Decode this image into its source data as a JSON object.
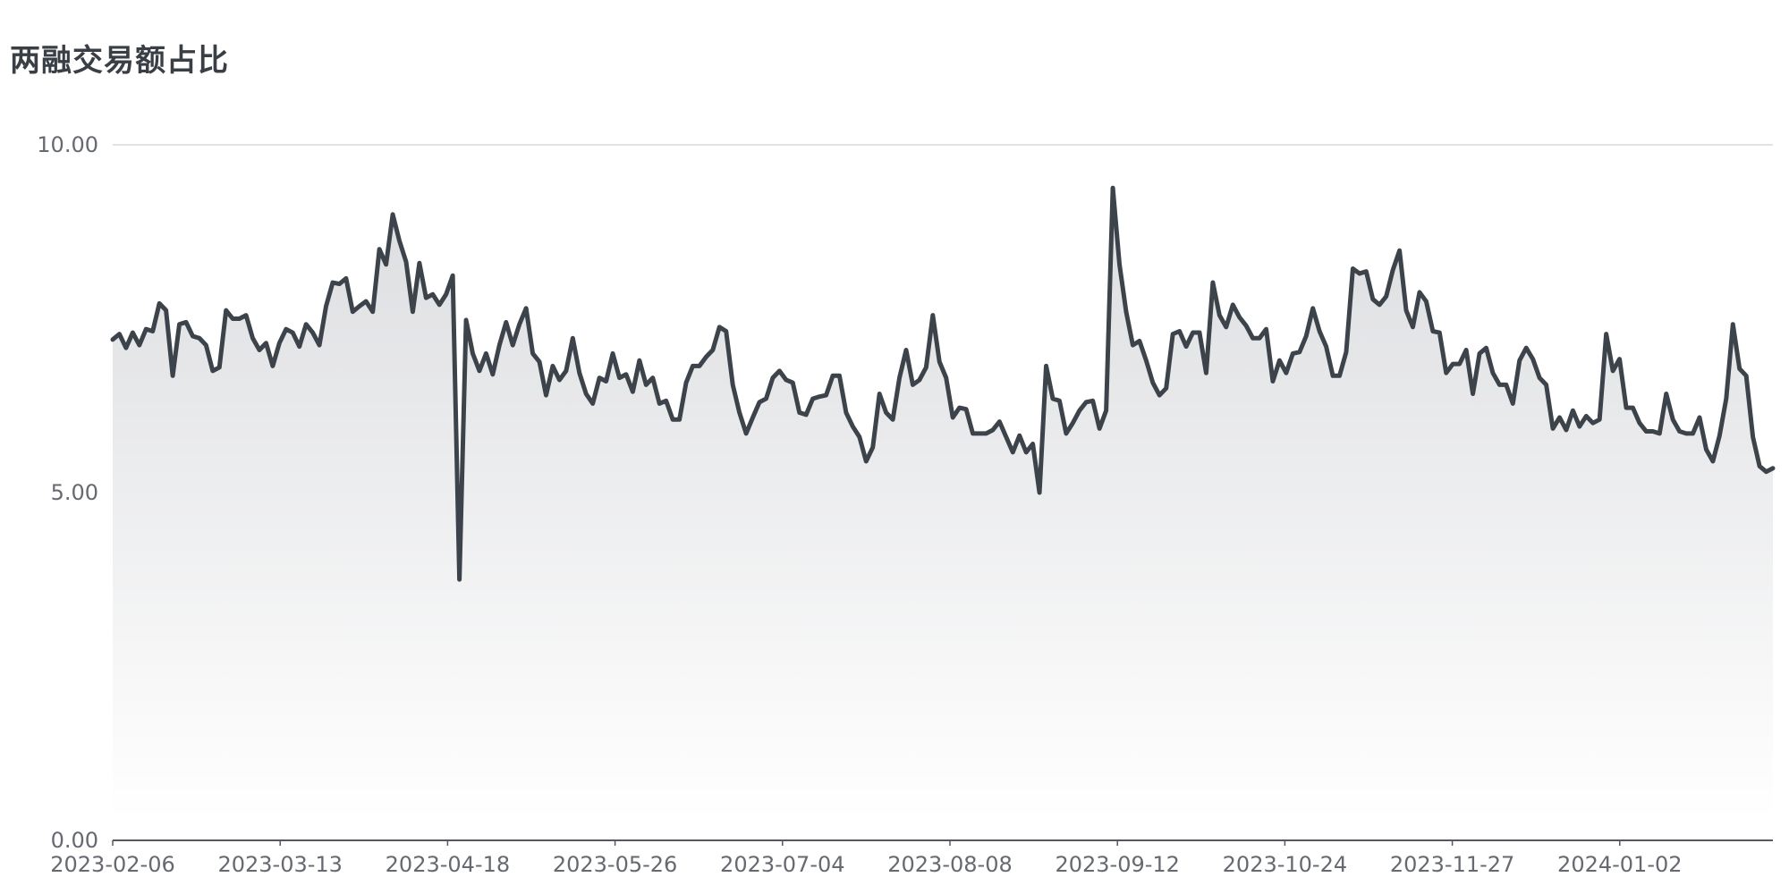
{
  "title": "两融交易额占比",
  "chart_data": {
    "type": "area",
    "title": "两融交易额占比",
    "xlabel": "",
    "ylabel": "",
    "ylim": [
      0,
      10
    ],
    "yticks": [
      "0.00",
      "5.00",
      "10.00"
    ],
    "xticks": [
      "2023-02-06",
      "2023-03-13",
      "2023-04-18",
      "2023-05-26",
      "2023-07-04",
      "2023-08-08",
      "2023-09-12",
      "2023-10-24",
      "2023-11-27",
      "2024-01-02"
    ],
    "grid": true,
    "legend": "none",
    "colors": {
      "line": "#3d434a",
      "fill_top": "#dcdde0",
      "fill_bottom": "#ffffff",
      "grid": "#d6d8dc",
      "axis": "#555a60"
    },
    "series": [
      {
        "values": [
          7.2,
          7.28,
          7.08,
          7.3,
          7.12,
          7.35,
          7.32,
          7.72,
          7.62,
          6.68,
          7.42,
          7.45,
          7.25,
          7.22,
          7.12,
          6.75,
          6.8,
          7.62,
          7.5,
          7.5,
          7.55,
          7.22,
          7.05,
          7.15,
          6.82,
          7.15,
          7.35,
          7.3,
          7.1,
          7.42,
          7.3,
          7.12,
          7.68,
          8.02,
          8.0,
          8.08,
          7.6,
          7.68,
          7.75,
          7.6,
          8.5,
          8.28,
          9.0,
          8.62,
          8.32,
          7.6,
          8.3,
          7.8,
          7.85,
          7.7,
          7.85,
          8.12,
          3.75,
          7.48,
          7.0,
          6.75,
          7.0,
          6.7,
          7.12,
          7.45,
          7.12,
          7.42,
          7.65,
          7.0,
          6.88,
          6.4,
          6.82,
          6.62,
          6.75,
          7.22,
          6.72,
          6.42,
          6.28,
          6.65,
          6.6,
          7.0,
          6.65,
          6.7,
          6.45,
          6.9,
          6.55,
          6.65,
          6.28,
          6.32,
          6.05,
          6.05,
          6.58,
          6.82,
          6.82,
          6.95,
          7.05,
          7.38,
          7.32,
          6.55,
          6.15,
          5.85,
          6.08,
          6.3,
          6.35,
          6.65,
          6.75,
          6.62,
          6.58,
          6.15,
          6.12,
          6.35,
          6.38,
          6.4,
          6.68,
          6.68,
          6.15,
          5.95,
          5.8,
          5.45,
          5.65,
          6.42,
          6.15,
          6.05,
          6.65,
          7.05,
          6.55,
          6.62,
          6.8,
          7.55,
          6.88,
          6.65,
          6.08,
          6.22,
          6.2,
          5.85,
          5.85,
          5.85,
          5.9,
          6.02,
          5.8,
          5.58,
          5.82,
          5.58,
          5.7,
          5.0,
          6.82,
          6.35,
          6.32,
          5.85,
          6.0,
          6.18,
          6.3,
          6.32,
          5.92,
          6.18,
          9.38,
          8.28,
          7.6,
          7.12,
          7.18,
          6.9,
          6.58,
          6.4,
          6.5,
          7.28,
          7.32,
          7.1,
          7.3,
          7.3,
          6.72,
          8.02,
          7.55,
          7.38,
          7.7,
          7.52,
          7.4,
          7.22,
          7.22,
          7.35,
          6.6,
          6.9,
          6.72,
          7.0,
          7.02,
          7.25,
          7.65,
          7.32,
          7.1,
          6.68,
          6.68,
          7.02,
          8.22,
          8.15,
          8.18,
          7.78,
          7.7,
          7.82,
          8.2,
          8.48,
          7.62,
          7.38,
          7.88,
          7.75,
          7.32,
          7.3,
          6.72,
          6.85,
          6.85,
          7.05,
          6.42,
          7.0,
          7.08,
          6.72,
          6.55,
          6.55,
          6.28,
          6.9,
          7.08,
          6.92,
          6.65,
          6.55,
          5.92,
          6.08,
          5.9,
          6.18,
          5.95,
          6.1,
          6.0,
          6.05,
          7.28,
          6.75,
          6.92,
          6.22,
          6.22,
          6.0,
          5.88,
          5.88,
          5.85,
          6.42,
          6.05,
          5.88,
          5.85,
          5.85,
          6.08,
          5.62,
          5.45,
          5.82,
          6.35,
          7.42,
          6.78,
          6.68,
          5.8,
          5.38,
          5.3,
          5.35
        ]
      }
    ]
  }
}
